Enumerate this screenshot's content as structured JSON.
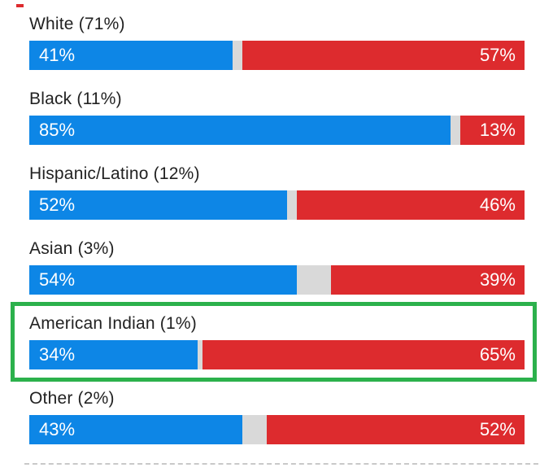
{
  "chart_data": {
    "type": "bar",
    "orientation": "horizontal",
    "stacked": true,
    "title": "",
    "xlabel": "",
    "ylabel": "",
    "xlim": [
      0,
      100
    ],
    "grid": false,
    "legend": "none",
    "value_suffix": "%",
    "categories": [
      "White (71%)",
      "Black (11%)",
      "Hispanic/Latino (12%)",
      "Asian (3%)",
      "American Indian (1%)",
      "Other (2%)"
    ],
    "series": [
      {
        "name": "blue-left-segment",
        "color": "#0d86e6",
        "values": [
          41,
          85,
          52,
          54,
          34,
          43
        ]
      },
      {
        "name": "red-right-segment",
        "color": "#dd2b2e",
        "values": [
          57,
          13,
          46,
          39,
          65,
          52
        ]
      }
    ],
    "unlabeled_remainder_segment_color": "#d9d9d9",
    "highlighted_category": "American Indian (1%)",
    "highlight_box_color": "#2cb14c"
  },
  "rows": [
    {
      "label": "White (71%)",
      "dem_pct": 41,
      "dem_label": "41%",
      "rep_pct": 57,
      "rep_label": "57%",
      "highlighted": false
    },
    {
      "label": "Black (11%)",
      "dem_pct": 85,
      "dem_label": "85%",
      "rep_pct": 13,
      "rep_label": "13%",
      "highlighted": false
    },
    {
      "label": "Hispanic/Latino (12%)",
      "dem_pct": 52,
      "dem_label": "52%",
      "rep_pct": 46,
      "rep_label": "46%",
      "highlighted": false
    },
    {
      "label": "Asian (3%)",
      "dem_pct": 54,
      "dem_label": "54%",
      "rep_pct": 39,
      "rep_label": "39%",
      "highlighted": false
    },
    {
      "label": "American Indian (1%)",
      "dem_pct": 34,
      "dem_label": "34%",
      "rep_pct": 65,
      "rep_label": "65%",
      "highlighted": true
    },
    {
      "label": "Other (2%)",
      "dem_pct": 43,
      "dem_label": "43%",
      "rep_pct": 52,
      "rep_label": "52%",
      "highlighted": false
    }
  ],
  "colors": {
    "dem_blue": "#0d86e6",
    "rep_red": "#dd2b2e",
    "gap_gray": "#d9d9d9",
    "highlight_green": "#2cb14c",
    "divider_gray": "#c9c9c9",
    "label_text": "#222222",
    "background": "#ffffff"
  }
}
